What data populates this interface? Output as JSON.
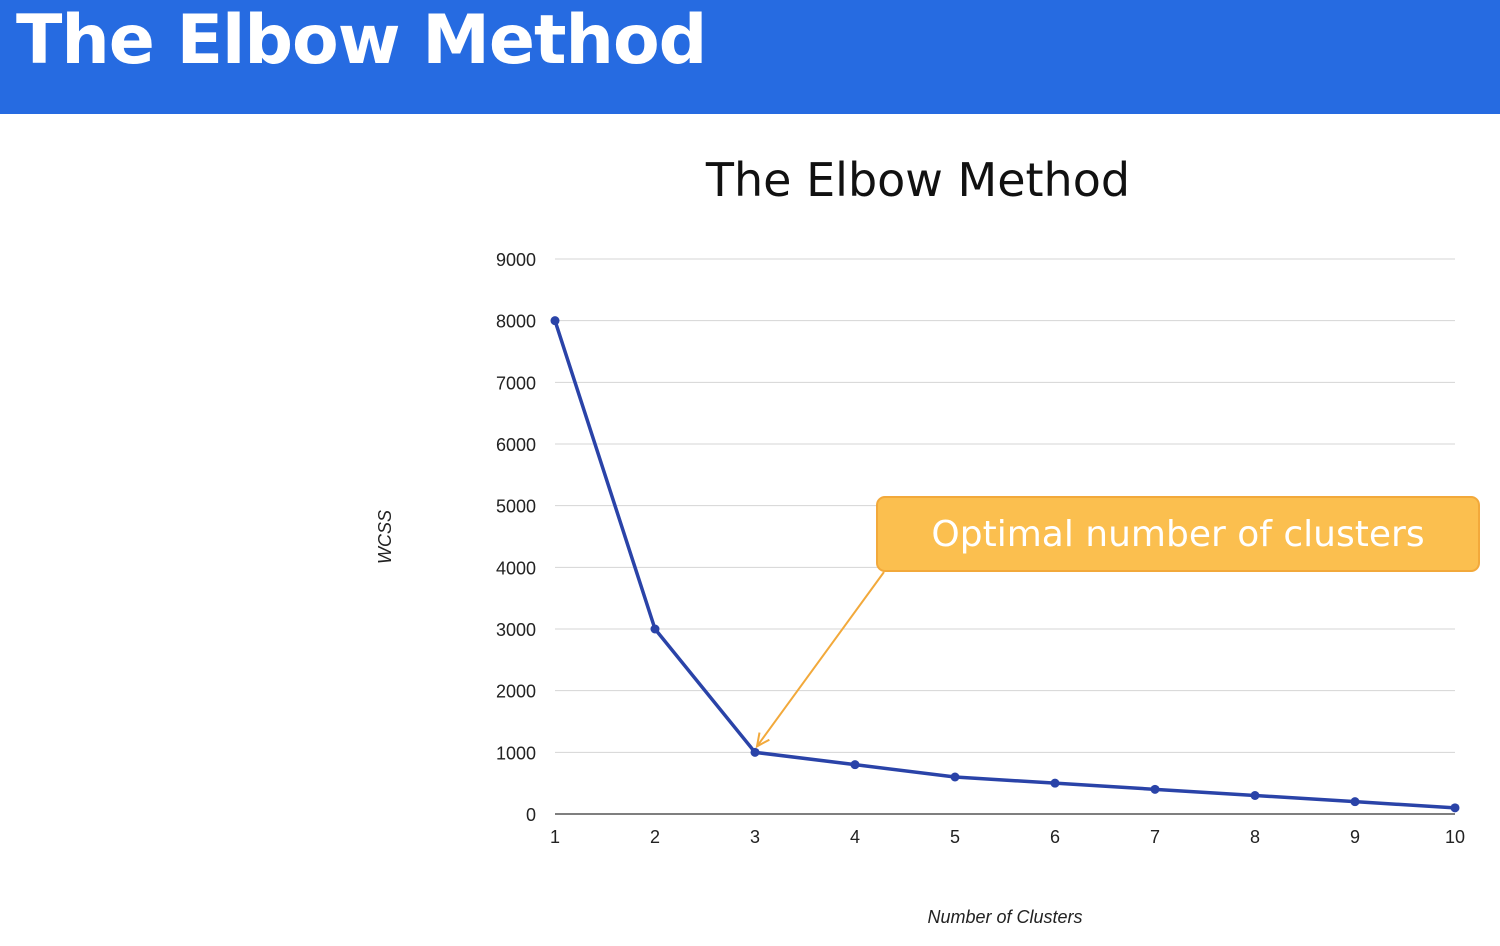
{
  "header": {
    "title": "The Elbow Method",
    "background_color": "#266BE1"
  },
  "callout": {
    "text": "Optimal number of clusters",
    "fill_color": "#FBBF4F",
    "arrow_color": "#F2A93B",
    "points_to": {
      "x": 3,
      "y": 1000
    }
  },
  "chart_data": {
    "type": "line",
    "title": "The Elbow Method",
    "xlabel": "Number of Clusters",
    "ylabel": "WCSS",
    "x": [
      1,
      2,
      3,
      4,
      5,
      6,
      7,
      8,
      9,
      10
    ],
    "series": [
      {
        "values": [
          8000,
          3000,
          1000,
          800,
          600,
          500,
          400,
          300,
          200,
          100
        ],
        "color": "#2A43A8",
        "markers": true
      }
    ],
    "xlim": [
      1,
      10
    ],
    "ylim": [
      0,
      9000
    ],
    "yticks": [
      0,
      1000,
      2000,
      3000,
      4000,
      5000,
      6000,
      7000,
      8000,
      9000
    ],
    "xticks": [
      1,
      2,
      3,
      4,
      5,
      6,
      7,
      8,
      9,
      10
    ],
    "grid": true,
    "legend": false
  }
}
